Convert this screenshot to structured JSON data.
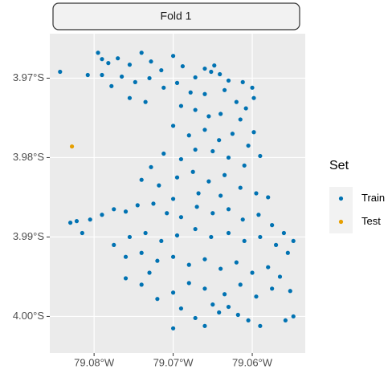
{
  "chart_data": {
    "type": "scatter",
    "strip": "Fold 1",
    "legend_title": "Set",
    "legend": "right",
    "grid": true,
    "xlim": [
      -79.0856,
      -79.0533
    ],
    "ylim": [
      -4.0046,
      -3.9644
    ],
    "xticks": [
      {
        "value": -79.08,
        "label": "79.08°W"
      },
      {
        "value": -79.07,
        "label": "79.07°W"
      },
      {
        "value": -79.06,
        "label": "79.06°W"
      }
    ],
    "yticks": [
      {
        "value": -3.97,
        "label": "3.97°S"
      },
      {
        "value": -3.98,
        "label": "3.98°S"
      },
      {
        "value": -3.99,
        "label": "3.99°S"
      },
      {
        "value": -4.0,
        "label": "4.00°S"
      }
    ],
    "series": [
      {
        "name": "Train",
        "color": "#0072B2",
        "x": [
          -79.0843,
          -79.0795,
          -79.079,
          -79.0782,
          -79.077,
          -79.0755,
          -79.074,
          -79.0728,
          -79.0715,
          -79.07,
          -79.0688,
          -79.0672,
          -79.066,
          -79.0652,
          -79.0648,
          -79.0641,
          -79.063,
          -79.0612,
          -79.06,
          -79.0598,
          -79.0608,
          -79.062,
          -79.0635,
          -79.066,
          -79.0678,
          -79.0695,
          -79.0712,
          -79.073,
          -79.0748,
          -79.0765,
          -79.0778,
          -79.079,
          -79.0808,
          -79.0755,
          -79.0735,
          -79.069,
          -79.0672,
          -79.0655,
          -79.064,
          -79.0615,
          -79.0598,
          -79.07,
          -79.068,
          -79.066,
          -79.0642,
          -79.0625,
          -79.0605,
          -79.059,
          -79.061,
          -79.063,
          -79.065,
          -79.0672,
          -79.069,
          -79.0712,
          -79.0728,
          -79.074,
          -79.0718,
          -79.0695,
          -79.0675,
          -79.0655,
          -79.0635,
          -79.0615,
          -79.0595,
          -79.058,
          -79.064,
          -79.0668,
          -79.07,
          -79.083,
          -79.0822,
          -79.0815,
          -79.0805,
          -79.079,
          -79.0775,
          -79.076,
          -79.0745,
          -79.0725,
          -79.0708,
          -79.069,
          -79.067,
          -79.065,
          -79.063,
          -79.0612,
          -79.0592,
          -79.0575,
          -79.056,
          -79.0548,
          -79.0555,
          -79.057,
          -79.059,
          -79.061,
          -79.063,
          -79.0652,
          -79.0672,
          -79.0695,
          -79.0715,
          -79.0735,
          -79.0755,
          -79.0775,
          -79.076,
          -79.074,
          -79.072,
          -79.07,
          -79.068,
          -79.066,
          -79.064,
          -79.062,
          -79.06,
          -79.058,
          -79.0565,
          -79.0552,
          -79.0575,
          -79.0595,
          -79.0615,
          -79.0635,
          -79.065,
          -79.0642,
          -79.063,
          -79.0618,
          -79.0605,
          -79.066,
          -79.068,
          -79.07,
          -79.069,
          -79.0672,
          -79.066,
          -79.07,
          -79.072,
          -79.074,
          -79.076,
          -79.073,
          -79.0558,
          -79.0548,
          -79.059
        ],
        "values": [
          -3.9692,
          -3.9668,
          -3.9676,
          -3.9681,
          -3.9675,
          -3.9683,
          -3.9668,
          -3.9679,
          -3.969,
          -3.9672,
          -3.9685,
          -3.9699,
          -3.9688,
          -3.9692,
          -3.9684,
          -3.9695,
          -3.9703,
          -3.9705,
          -3.9712,
          -3.9725,
          -3.9738,
          -3.973,
          -3.9715,
          -3.972,
          -3.9718,
          -3.9706,
          -3.9712,
          -3.97,
          -3.9705,
          -3.9698,
          -3.971,
          -3.9696,
          -3.9696,
          -3.9725,
          -3.973,
          -3.9735,
          -3.974,
          -3.9748,
          -3.9745,
          -3.9752,
          -3.9768,
          -3.976,
          -3.9772,
          -3.9765,
          -3.9778,
          -3.977,
          -3.9785,
          -3.9798,
          -3.981,
          -3.98,
          -3.9792,
          -3.979,
          -3.9802,
          -3.9795,
          -3.9812,
          -3.9828,
          -3.9835,
          -3.9825,
          -3.9818,
          -3.983,
          -3.9822,
          -3.9838,
          -3.9845,
          -3.985,
          -3.9848,
          -3.9845,
          -3.9852,
          -3.9882,
          -3.988,
          -3.9895,
          -3.9878,
          -3.9872,
          -3.9865,
          -3.9868,
          -3.986,
          -3.9858,
          -3.987,
          -3.9875,
          -3.9862,
          -3.987,
          -3.9865,
          -3.9878,
          -3.9872,
          -3.9885,
          -3.9895,
          -3.9905,
          -3.992,
          -3.991,
          -3.99,
          -3.9905,
          -3.9895,
          -3.99,
          -3.989,
          -3.9898,
          -3.9905,
          -3.9895,
          -3.99,
          -3.991,
          -3.9925,
          -3.992,
          -3.993,
          -3.9925,
          -3.9935,
          -3.9928,
          -3.994,
          -3.9932,
          -3.9945,
          -3.9938,
          -3.995,
          -3.9968,
          -3.9965,
          -3.9975,
          -3.996,
          -3.9972,
          -3.9985,
          -3.9995,
          -3.9988,
          -3.9998,
          -4.0005,
          -3.9965,
          -3.9958,
          -3.997,
          -3.999,
          -4.0002,
          -4.0012,
          -4.0015,
          -3.9978,
          -3.996,
          -3.9952,
          -3.9945,
          -4.0005,
          -4.0,
          -4.0012
        ]
      },
      {
        "name": "Test",
        "color": "#E69F00",
        "x": [
          -79.0828
        ],
        "values": [
          -3.9786
        ]
      }
    ]
  }
}
